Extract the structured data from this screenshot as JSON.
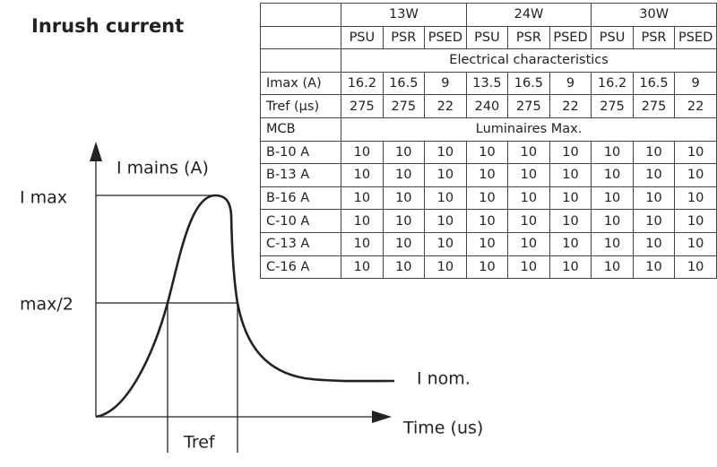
{
  "title": "Inrush current",
  "table": {
    "powers": [
      "13W",
      "24W",
      "30W"
    ],
    "types": [
      "PSU",
      "PSR",
      "PSED",
      "PSU",
      "PSR",
      "PSED",
      "PSU",
      "PSR",
      "PSED"
    ],
    "section1": "Electrical characteristics",
    "rows1": [
      [
        "Imax (A)",
        16.2,
        16.5,
        9,
        13.5,
        16.5,
        9,
        16.2,
        16.5,
        9
      ],
      [
        "Tref (µs)",
        275,
        275,
        22,
        240,
        275,
        22,
        275,
        275,
        22
      ]
    ],
    "mcb_label": "MCB",
    "section2": "Luminaires Max.",
    "rows2": [
      [
        "B-10 A",
        10,
        10,
        10,
        10,
        10,
        10,
        10,
        10,
        10
      ],
      [
        "B-13 A",
        10,
        10,
        10,
        10,
        10,
        10,
        10,
        10,
        10
      ],
      [
        "B-16 A",
        10,
        10,
        10,
        10,
        10,
        10,
        10,
        10,
        10
      ],
      [
        "C-10 A",
        10,
        10,
        10,
        10,
        10,
        10,
        10,
        10,
        10
      ],
      [
        "C-13 A",
        10,
        10,
        10,
        10,
        10,
        10,
        10,
        10,
        10
      ],
      [
        "C-16 A",
        10,
        10,
        10,
        10,
        10,
        10,
        10,
        10,
        10
      ]
    ]
  },
  "diagram": {
    "y_axis_label": "I mains (A)",
    "i_max": "I max",
    "half_max": "max/2",
    "i_nom": "I nom.",
    "x_axis_label": "Time (us)",
    "tref": "Tref"
  }
}
